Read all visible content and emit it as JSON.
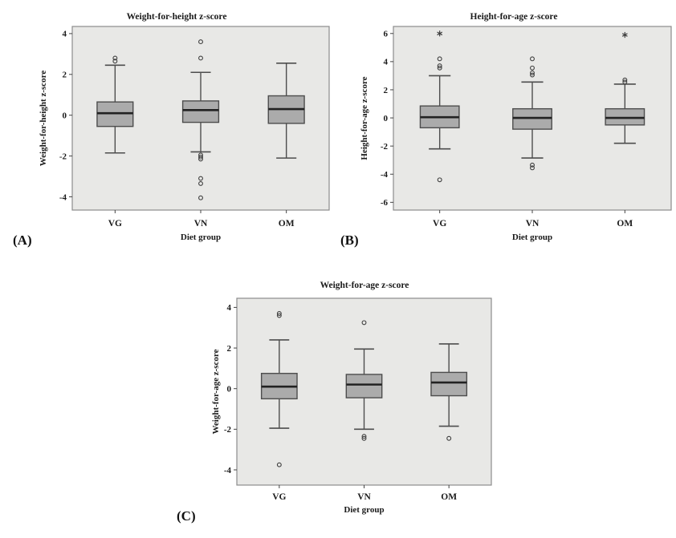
{
  "figure": {
    "description": "Three SPSS-style box plots of anthropometric z-scores by diet group",
    "x_categories": [
      "VG",
      "VN",
      "OM"
    ]
  },
  "colors": {
    "page_bg": "#ffffff",
    "plot_bg": "#e8e8e6",
    "plot_border": "#8c8c8c",
    "box_fill": "#ababab",
    "box_border": "#4d4d4d",
    "median": "#222222",
    "whisker": "#4d4d4d",
    "outlier": "#3d3d3d",
    "text": "#1a1a1a"
  },
  "chart_data": [
    {
      "type": "boxplot",
      "panel_label": "(A)",
      "title": "Weight-for-height z-score",
      "ylabel": "Weight-for-height z-score",
      "xlabel": "Diet group",
      "categories": [
        "VG",
        "VN",
        "OM"
      ],
      "yticks": [
        -4,
        -2,
        0,
        2,
        4
      ],
      "ylim": [
        -4.65,
        4.35
      ],
      "boxes": [
        {
          "group": "VG",
          "whisker_low": -1.85,
          "q1": -0.55,
          "median": 0.1,
          "q3": 0.65,
          "whisker_high": 2.45,
          "outliers": [
            2.8,
            2.65
          ],
          "extremes": []
        },
        {
          "group": "VN",
          "whisker_low": -1.8,
          "q1": -0.35,
          "median": 0.25,
          "q3": 0.7,
          "whisker_high": 2.1,
          "outliers": [
            3.6,
            2.8,
            -1.95,
            -2.05,
            -2.15,
            -3.1,
            -3.35,
            -4.05
          ],
          "extremes": []
        },
        {
          "group": "OM",
          "whisker_low": -2.1,
          "q1": -0.4,
          "median": 0.3,
          "q3": 0.95,
          "whisker_high": 2.55,
          "outliers": [],
          "extremes": []
        }
      ]
    },
    {
      "type": "boxplot",
      "panel_label": "(B)",
      "title": "Height-for-age z-score",
      "ylabel": "Height-for-age z-score",
      "xlabel": "Diet group",
      "categories": [
        "VG",
        "VN",
        "OM"
      ],
      "yticks": [
        -6,
        -4,
        -2,
        0,
        2,
        4,
        6
      ],
      "ylim": [
        -6.55,
        6.5
      ],
      "boxes": [
        {
          "group": "VG",
          "whisker_low": -2.2,
          "q1": -0.7,
          "median": 0.05,
          "q3": 0.85,
          "whisker_high": 3.0,
          "outliers": [
            4.2,
            3.7,
            3.55,
            -4.4
          ],
          "extremes": [
            6.0
          ]
        },
        {
          "group": "VN",
          "whisker_low": -2.85,
          "q1": -0.8,
          "median": 0.0,
          "q3": 0.65,
          "whisker_high": 2.55,
          "outliers": [
            4.2,
            3.55,
            3.2,
            3.05,
            -3.35,
            -3.55
          ],
          "extremes": []
        },
        {
          "group": "OM",
          "whisker_low": -1.8,
          "q1": -0.5,
          "median": 0.0,
          "q3": 0.65,
          "whisker_high": 2.4,
          "outliers": [
            2.7,
            2.55
          ],
          "extremes": [
            5.9
          ]
        }
      ]
    },
    {
      "type": "boxplot",
      "panel_label": "(C)",
      "title": "Weight-for-age z-score",
      "ylabel": "Weight-for-age z-score",
      "xlabel": "Diet group",
      "categories": [
        "VG",
        "VN",
        "OM"
      ],
      "yticks": [
        -4,
        -2,
        0,
        2,
        4
      ],
      "ylim": [
        -4.75,
        4.45
      ],
      "boxes": [
        {
          "group": "VG",
          "whisker_low": -1.95,
          "q1": -0.5,
          "median": 0.1,
          "q3": 0.75,
          "whisker_high": 2.4,
          "outliers": [
            3.7,
            3.6,
            -3.75
          ],
          "extremes": []
        },
        {
          "group": "VN",
          "whisker_low": -2.0,
          "q1": -0.45,
          "median": 0.2,
          "q3": 0.7,
          "whisker_high": 1.95,
          "outliers": [
            3.25,
            -2.35,
            -2.45
          ],
          "extremes": []
        },
        {
          "group": "OM",
          "whisker_low": -1.85,
          "q1": -0.35,
          "median": 0.3,
          "q3": 0.8,
          "whisker_high": 2.2,
          "outliers": [
            -2.45
          ],
          "extremes": []
        }
      ]
    }
  ]
}
